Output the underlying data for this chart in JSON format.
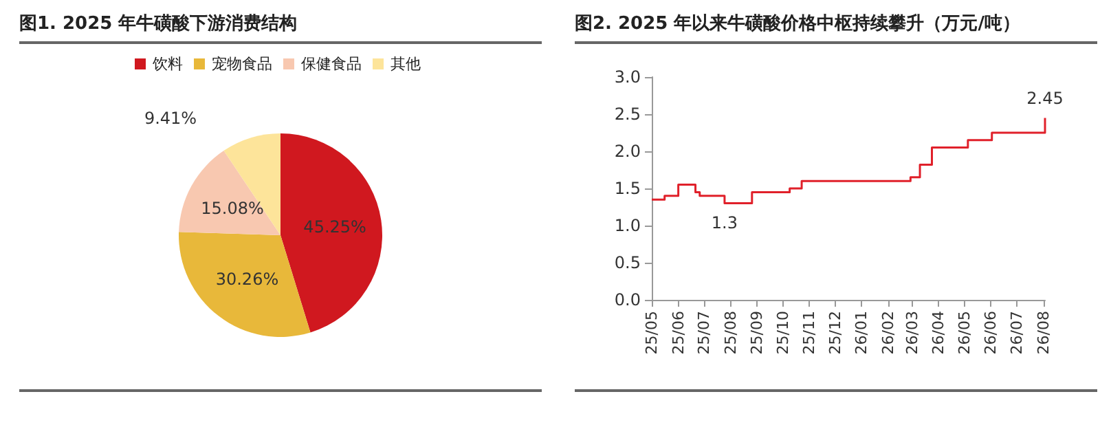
{
  "chart_data": [
    {
      "type": "pie",
      "title": "图1. 2025 年牛磺酸下游消费结构",
      "categories": [
        "饮料",
        "宠物食品",
        "保健食品",
        "其他"
      ],
      "values": [
        45.25,
        30.26,
        15.08,
        9.41
      ],
      "colors": [
        "#d0181f",
        "#e8b83a",
        "#f8c8b0",
        "#fde49a"
      ],
      "value_labels": [
        "45.25%",
        "30.26%",
        "15.08%",
        "9.41%"
      ],
      "legend": "top"
    },
    {
      "type": "step",
      "title": "图2. 2025 年以来牛磺酸价格中枢持续攀升（万元/吨）",
      "x": [
        "2025-05-01",
        "2025-05-16",
        "2025-06-01",
        "2025-06-21",
        "2025-06-26",
        "2025-07-25",
        "2025-08-26",
        "2025-10-09",
        "2025-10-23",
        "2026-02-27",
        "2026-03-10",
        "2026-03-24",
        "2026-05-05",
        "2026-06-02",
        "2026-08-03"
      ],
      "series": [
        {
          "color": "#e0202a",
          "values": [
            1.35,
            1.4,
            1.55,
            1.45,
            1.4,
            1.3,
            1.45,
            1.5,
            1.6,
            1.65,
            1.82,
            2.05,
            2.15,
            2.25,
            2.45
          ],
          "value_labels": [
            null,
            null,
            null,
            null,
            null,
            "1.3",
            null,
            null,
            null,
            null,
            null,
            null,
            null,
            null,
            "2.45"
          ]
        }
      ],
      "xlim": [
        "2025-05-01",
        "2026-08-03"
      ],
      "xticks": [
        {
          "value": "2025-05",
          "label": "25/05"
        },
        {
          "value": "2025-06",
          "label": "25/06"
        },
        {
          "value": "2025-07",
          "label": "25/07"
        },
        {
          "value": "2025-08",
          "label": "25/08"
        },
        {
          "value": "2025-09",
          "label": "25/09"
        },
        {
          "value": "2025-10",
          "label": "25/10"
        },
        {
          "value": "2025-11",
          "label": "25/11"
        },
        {
          "value": "2025-12",
          "label": "25/12"
        },
        {
          "value": "2026-01",
          "label": "26/01"
        },
        {
          "value": "2026-02",
          "label": "26/02"
        },
        {
          "value": "2026-03",
          "label": "26/03"
        },
        {
          "value": "2026-04",
          "label": "26/04"
        },
        {
          "value": "2026-05",
          "label": "26/05"
        },
        {
          "value": "2026-06",
          "label": "26/06"
        },
        {
          "value": "2026-07",
          "label": "26/07"
        },
        {
          "value": "2026-08",
          "label": "26/08"
        }
      ],
      "ylim": [
        0,
        3
      ],
      "yticks": [
        {
          "value": 0,
          "label": "0.0"
        },
        {
          "value": 0.5,
          "label": "0.5"
        },
        {
          "value": 1,
          "label": "1.0"
        },
        {
          "value": 1.5,
          "label": "1.5"
        },
        {
          "value": 2,
          "label": "2.0"
        },
        {
          "value": 2.5,
          "label": "2.5"
        },
        {
          "value": 3,
          "label": "3.0"
        }
      ],
      "marker": "none",
      "grid": false
    }
  ]
}
